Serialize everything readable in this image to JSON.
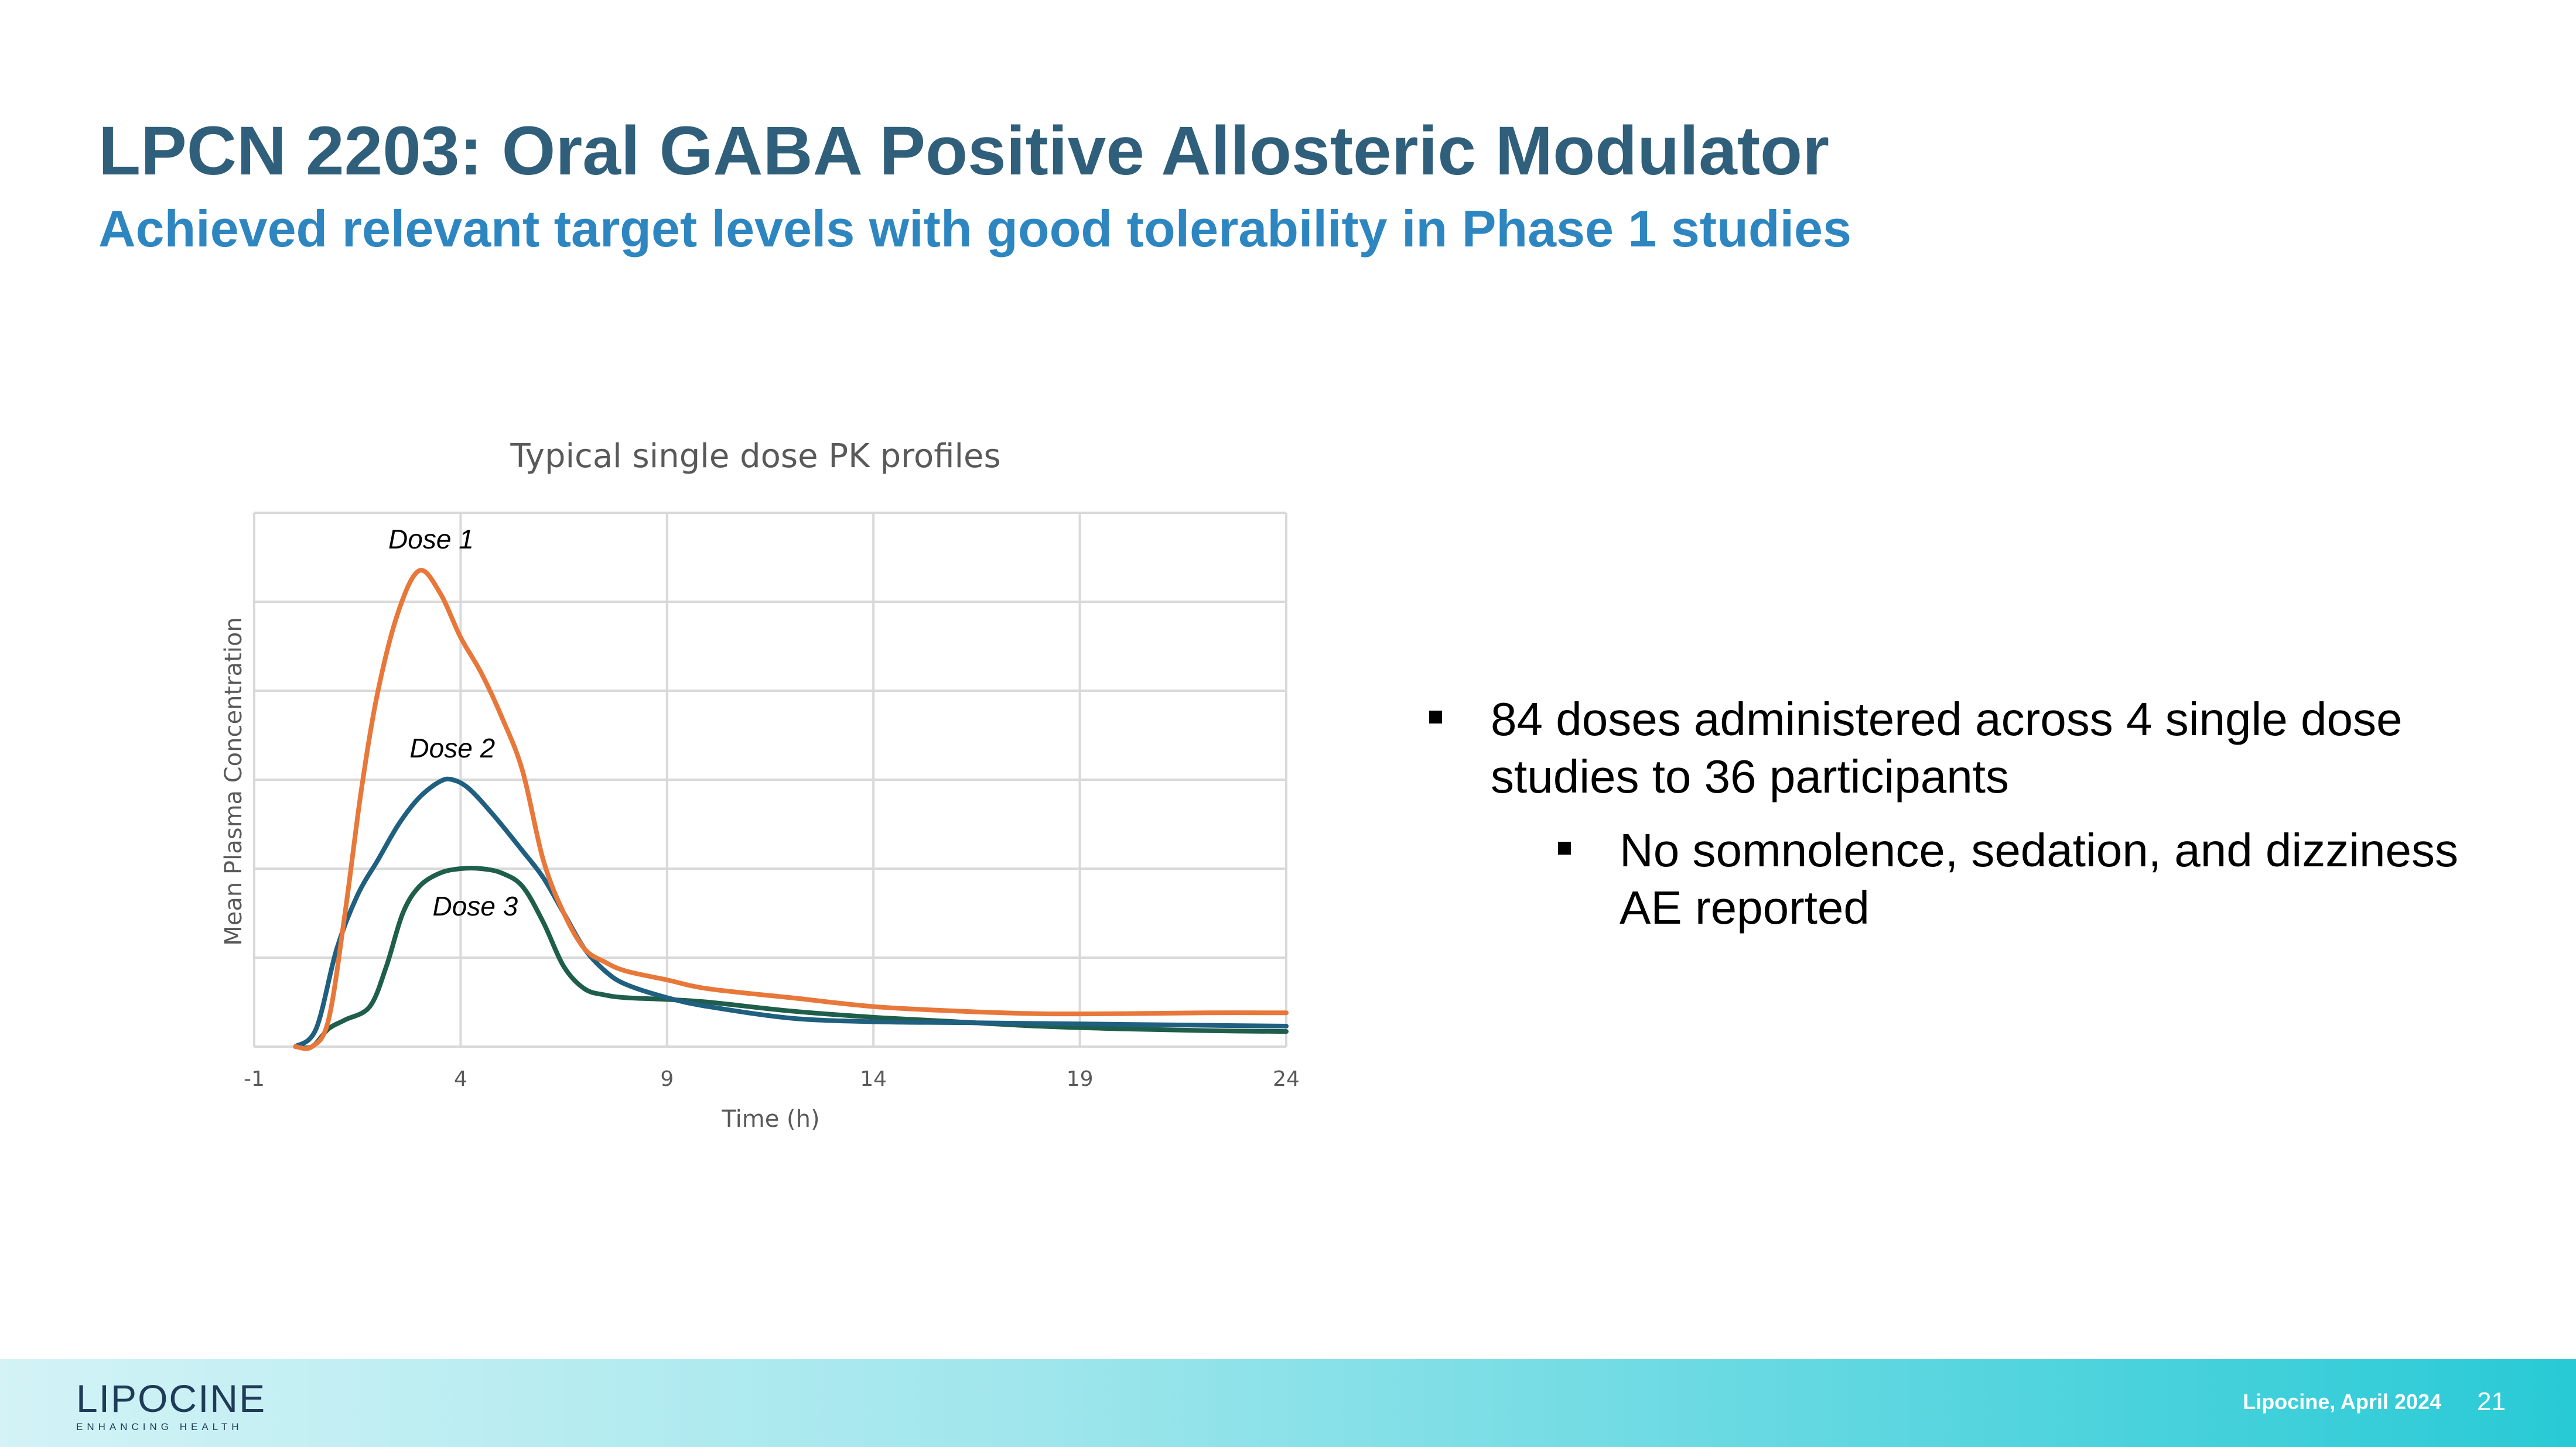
{
  "slide": {
    "title": "LPCN 2203: Oral GABA Positive Allosteric Modulator",
    "subtitle": "Achieved relevant target levels with good tolerability in Phase 1 studies"
  },
  "bullets": {
    "main": "84 doses administered across 4 single dose studies to 36 participants",
    "sub": "No somnolence, sedation, and dizziness AE reported"
  },
  "footer": {
    "logo_text": "LIPOCINE",
    "logo_tagline": "ENHANCING HEALTH",
    "source": "Lipocine, April 2024",
    "page_number": "21"
  },
  "colors": {
    "title": "#2f5f7a",
    "subtitle": "#2e86c1",
    "dose1": "#e8773a",
    "dose2": "#1f5f80",
    "dose3": "#1e5e4a",
    "grid": "#d9d9d9"
  },
  "chart_data": {
    "type": "line",
    "title": "Typical single dose PK profiles",
    "xlabel": "Time (h)",
    "ylabel": "Mean Plasma Concentration",
    "xlim": [
      -1,
      24
    ],
    "ylim": [
      0,
      6
    ],
    "xticks": [
      -1,
      4,
      9,
      14,
      19,
      24
    ],
    "ytick_labels_shown": false,
    "grid": true,
    "series": [
      {
        "name": "Dose 1",
        "label": "Dose 1",
        "color": "#e8773a",
        "x": [
          0,
          0.4,
          0.8,
          1.2,
          1.6,
          2.0,
          2.5,
          3.0,
          3.5,
          4.0,
          4.5,
          5.0,
          5.5,
          6.0,
          6.5,
          7.0,
          7.5,
          8.0,
          9.0,
          10.0,
          12.0,
          14.0,
          16.0,
          18.0,
          20.0,
          22.0,
          24.0
        ],
        "y": [
          0,
          0,
          0.3,
          1.5,
          2.9,
          4.0,
          4.9,
          5.35,
          5.1,
          4.6,
          4.2,
          3.7,
          3.1,
          2.1,
          1.5,
          1.1,
          0.95,
          0.85,
          0.75,
          0.65,
          0.55,
          0.45,
          0.4,
          0.37,
          0.37,
          0.38,
          0.38
        ]
      },
      {
        "name": "Dose 2",
        "label": "Dose 2",
        "color": "#1f5f80",
        "x": [
          0,
          0.5,
          1.0,
          1.5,
          2.0,
          2.5,
          3.0,
          3.5,
          3.8,
          4.2,
          4.8,
          5.5,
          6.0,
          6.5,
          7.0,
          7.5,
          8.0,
          9.0,
          10.0,
          12.0,
          14.0,
          16.0,
          18.0,
          20.0,
          22.0,
          24.0
        ],
        "y": [
          0,
          0.2,
          1.1,
          1.7,
          2.1,
          2.5,
          2.8,
          2.98,
          3.0,
          2.9,
          2.6,
          2.2,
          1.9,
          1.5,
          1.1,
          0.85,
          0.7,
          0.55,
          0.45,
          0.32,
          0.28,
          0.27,
          0.26,
          0.25,
          0.24,
          0.23
        ]
      },
      {
        "name": "Dose 3",
        "label": "Dose 3",
        "color": "#1e5e4a",
        "x": [
          0,
          0.4,
          0.8,
          1.2,
          1.8,
          2.2,
          2.6,
          3.0,
          3.5,
          4.0,
          4.5,
          5.0,
          5.5,
          6.0,
          6.5,
          7.0,
          7.5,
          8.0,
          9.0,
          10.0,
          12.0,
          14.0,
          16.0,
          18.0,
          20.0,
          22.0,
          24.0
        ],
        "y": [
          0,
          0,
          0.2,
          0.3,
          0.45,
          0.9,
          1.5,
          1.8,
          1.95,
          2.0,
          2.0,
          1.95,
          1.8,
          1.4,
          0.9,
          0.65,
          0.58,
          0.55,
          0.53,
          0.5,
          0.4,
          0.33,
          0.28,
          0.23,
          0.2,
          0.18,
          0.17
        ]
      }
    ]
  }
}
